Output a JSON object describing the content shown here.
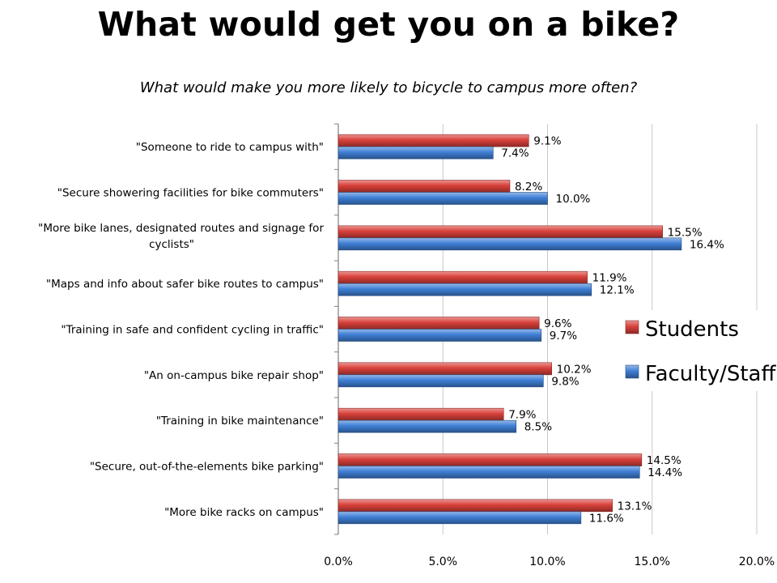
{
  "title": "What would get you on a bike?",
  "chart_data": {
    "type": "bar",
    "orientation": "horizontal",
    "title": "What would make you more likely to bicycle to campus more often?",
    "categories": [
      [
        "\"Someone to ride to campus with\""
      ],
      [
        "\"Secure showering facilities for bike commuters\""
      ],
      [
        "\"More bike lanes, designated routes and signage for",
        "cyclists\""
      ],
      [
        "\"Maps and info about safer bike routes to campus\""
      ],
      [
        "\"Training in safe and confident cycling in traffic\""
      ],
      [
        "\"An on-campus bike repair shop\""
      ],
      [
        "\"Training in bike maintenance\""
      ],
      [
        "\"Secure, out-of-the-elements bike parking\""
      ],
      [
        "\"More bike racks on campus\""
      ]
    ],
    "series": [
      {
        "name": "Students",
        "color": "#d9403a",
        "values": [
          9.1,
          8.2,
          15.5,
          11.9,
          9.6,
          10.2,
          7.9,
          14.5,
          13.1
        ],
        "labels": [
          "9.1%",
          "8.2%",
          "15.5%",
          "11.9%",
          "9.6%",
          "10.2%",
          "7.9%",
          "14.5%",
          "13.1%"
        ]
      },
      {
        "name": "Faculty/Staff",
        "color": "#3f7fd6",
        "values": [
          7.4,
          10.0,
          16.4,
          12.1,
          9.7,
          9.8,
          8.5,
          14.4,
          11.6
        ],
        "labels": [
          "7.4%",
          "10.0%",
          "16.4%",
          "12.1%",
          "9.7%",
          "9.8%",
          "8.5%",
          "14.4%",
          "11.6%"
        ]
      }
    ],
    "xlim": [
      0,
      20
    ],
    "xticks": [
      "0.0%",
      "5.0%",
      "10.0%",
      "15.0%",
      "20.0%"
    ],
    "grid": true,
    "legend": "right"
  }
}
